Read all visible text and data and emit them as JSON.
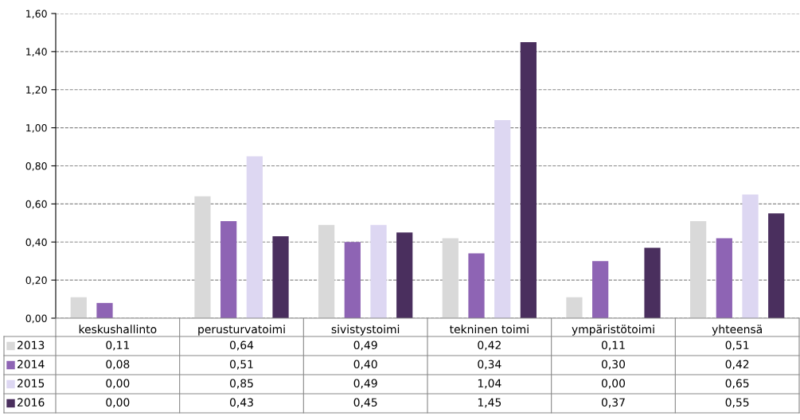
{
  "chart_data": {
    "type": "bar",
    "categories": [
      "keskushallinto",
      "perusturvatoimi",
      "sivistystoimi",
      "tekninen toimi",
      "ympäristötoimi",
      "yhteensä"
    ],
    "series": [
      {
        "name": "2013",
        "color": "#d9d9d9",
        "values": [
          0.11,
          0.64,
          0.49,
          0.42,
          0.11,
          0.51
        ],
        "value_labels": [
          "0,11",
          "0,64",
          "0,49",
          "0,42",
          "0,11",
          "0,51"
        ]
      },
      {
        "name": "2014",
        "color": "#8e64b4",
        "values": [
          0.08,
          0.51,
          0.4,
          0.34,
          0.3,
          0.42
        ],
        "value_labels": [
          "0,08",
          "0,51",
          "0,40",
          "0,34",
          "0,30",
          "0,42"
        ]
      },
      {
        "name": "2015",
        "color": "#ddd7f2",
        "values": [
          0.0,
          0.85,
          0.49,
          1.04,
          0.0,
          0.65
        ],
        "value_labels": [
          "0,00",
          "0,85",
          "0,49",
          "1,04",
          "0,00",
          "0,65"
        ]
      },
      {
        "name": "2016",
        "color": "#4a2f5e",
        "values": [
          0.0,
          0.43,
          0.45,
          1.45,
          0.37,
          0.55
        ],
        "value_labels": [
          "0,00",
          "0,43",
          "0,45",
          "1,45",
          "0,37",
          "0,55"
        ]
      }
    ],
    "ylim": [
      0,
      1.6
    ],
    "yticks": [
      {
        "value": 0,
        "label": "0,00"
      },
      {
        "value": 0.2,
        "label": "0,20"
      },
      {
        "value": 0.4,
        "label": "0,40"
      },
      {
        "value": 0.6,
        "label": "0,60"
      },
      {
        "value": 0.8,
        "label": "0,80"
      },
      {
        "value": 1.0,
        "label": "1,00"
      },
      {
        "value": 1.2,
        "label": "1,20"
      },
      {
        "value": 1.4,
        "label": "1,40"
      },
      {
        "value": 1.6,
        "label": "1,60"
      }
    ],
    "grid": "y",
    "legend": "bottom"
  }
}
